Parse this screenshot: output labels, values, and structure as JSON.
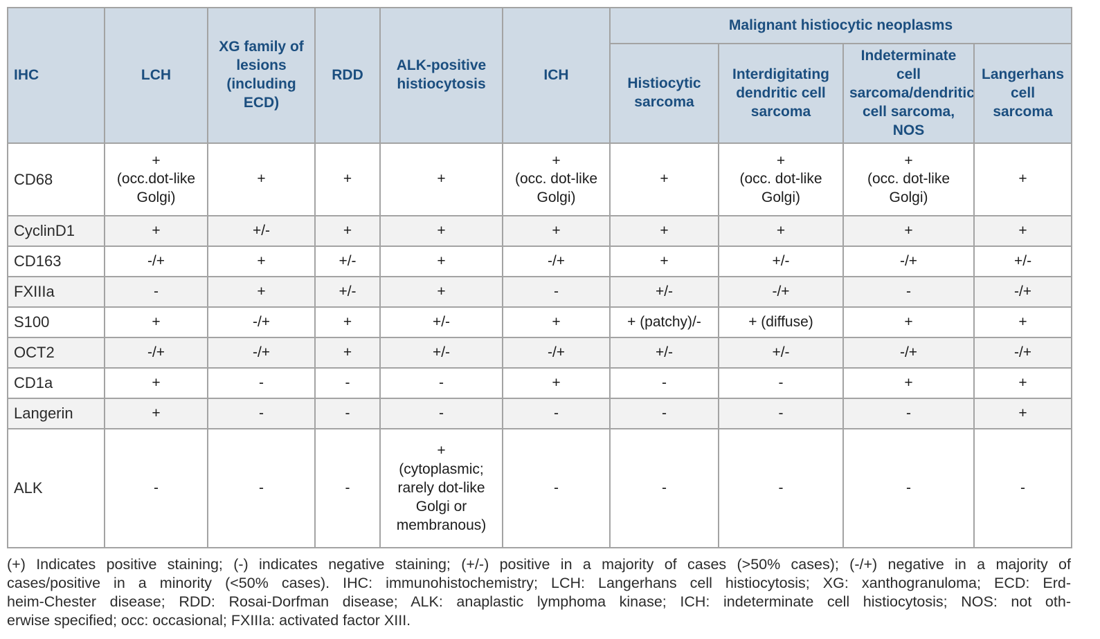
{
  "theme": {
    "header_bg": "#cfdae5",
    "header_text": "#1b4e7f",
    "body_text": "#1c1c1c",
    "stripe_bg": "#f2f2f2",
    "border_color": "#a3a3a3",
    "page_bg": "#ffffff"
  },
  "table": {
    "corner_header": "IHC",
    "column_headers": [
      "LCH",
      "XG family of lesions (including ECD)",
      "RDD",
      "ALK-positive histiocytosis",
      "ICH"
    ],
    "group_header": "Malignant histiocytic neoplasms",
    "group_columns": [
      "Histiocytic sarcoma",
      "Interdigitating dendritic cell sarcoma",
      "Indeterminate cell sarcoma/dendritic cell sarcoma, NOS",
      "Langerhans cell sarcoma"
    ],
    "rows": [
      {
        "marker": "CD68",
        "values": [
          "+\n(occ.dot-like Golgi)",
          "+",
          "+",
          "+",
          "+\n(occ. dot-like Golgi)",
          "+",
          "+\n(occ. dot-like Golgi)",
          "+\n(occ. dot-like Golgi)",
          "+"
        ]
      },
      {
        "marker": "CyclinD1",
        "values": [
          "+",
          "+/-",
          "+",
          "+",
          "+",
          "+",
          "+",
          "+",
          "+"
        ]
      },
      {
        "marker": "CD163",
        "values": [
          "-/+",
          "+",
          "+/-",
          "+",
          "-/+",
          "+",
          "+/-",
          "-/+",
          "+/-"
        ]
      },
      {
        "marker": "FXIIIa",
        "values": [
          "-",
          "+",
          "+/-",
          "+",
          "-",
          "+/-",
          "-/+",
          "-",
          "-/+"
        ]
      },
      {
        "marker": "S100",
        "values": [
          "+",
          "-/+",
          "+",
          "+/-",
          "+",
          "+ (patchy)/-",
          "+ (diffuse)",
          "+",
          "+"
        ]
      },
      {
        "marker": "OCT2",
        "values": [
          "-/+",
          "-/+",
          "+",
          "+/-",
          "-/+",
          "+/-",
          "+/-",
          "-/+",
          "-/+"
        ]
      },
      {
        "marker": "CD1a",
        "values": [
          "+",
          "-",
          "-",
          "-",
          "+",
          "-",
          "-",
          "+",
          "+"
        ]
      },
      {
        "marker": "Langerin",
        "values": [
          "+",
          "-",
          "-",
          "-",
          "-",
          "-",
          "-",
          "-",
          "+"
        ]
      },
      {
        "marker": "ALK",
        "values": [
          "-",
          "-",
          "-",
          "+\n(cytoplasmic; rarely dot-like Golgi or membranous)",
          "-",
          "-",
          "-",
          "-",
          "-"
        ]
      }
    ]
  },
  "footnote": {
    "lines": [
      "(+) Indicates positive staining; (-) indicates negative staining; (+/-) positive in a majority of cases (>50% cases); (-/+) negative in a majority of",
      "cases/positive in a minority (<50% cases). IHC: immunohistochemistry; LCH: Langerhans cell histiocytosis; XG: xanthogranuloma; ECD: Erd-",
      "heim-Chester disease; RDD: Rosai-Dorfman disease; ALK: anaplastic lymphoma kinase; ICH: indeterminate cell histiocytosis; NOS: not oth-",
      "erwise specified; occ: occasional; FXIIIa: activated factor XIII."
    ]
  }
}
